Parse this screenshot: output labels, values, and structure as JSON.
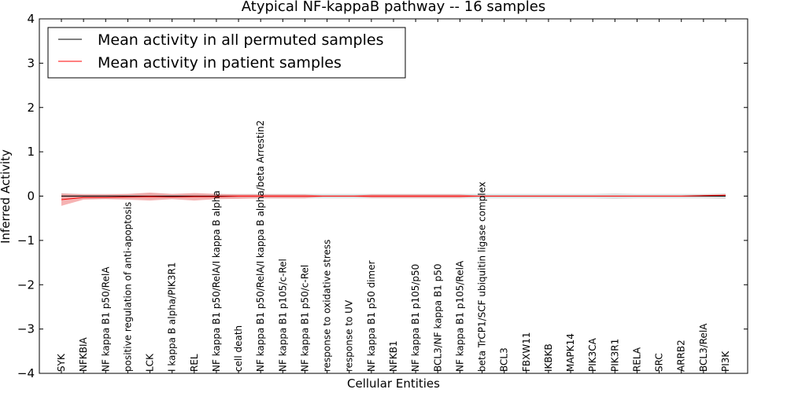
{
  "chart_data": {
    "type": "line",
    "title": "Atypical NF-kappaB pathway -- 16 samples",
    "xlabel": "Cellular Entities",
    "ylabel": "Inferred Activity",
    "ylim": [
      -4,
      4
    ],
    "yticks": [
      -4,
      -3,
      -2,
      -1,
      0,
      1,
      2,
      3,
      4
    ],
    "ytick_labels": [
      "−4",
      "−3",
      "−2",
      "−1",
      "0",
      "1",
      "2",
      "3",
      "4"
    ],
    "grid": false,
    "legend_position": "top-left",
    "categories": [
      "SYK",
      "NFKBIA",
      "NF kappa B1 p50/RelA",
      "positive regulation of anti-apoptosis",
      "LCK",
      "I kappa B alpha/PIK3R1",
      "REL",
      "NF kappa B1 p50/RelA/I kappa B alpha",
      "cell death",
      "NF kappa B1 p50/RelA/I kappa B alpha/beta Arrestin2",
      "NF kappa B1 p105/c-Rel",
      "NF kappa B1 p50/c-Rel",
      "response to oxidative stress",
      "response to UV",
      "NF kappa B1 p50 dimer",
      "NFKB1",
      "NF kappa B1 p105/p50",
      "BCL3/NF kappa B1 p50",
      "NF kappa B1 p105/RelA",
      "beta TrCP1/SCF ubiquitin ligase complex",
      "BCL3",
      "FBXW11",
      "IKBKB",
      "MAPK14",
      "PIK3CA",
      "PIK3R1",
      "RELA",
      "SRC",
      "ARRB2",
      "BCL3/RelA",
      "PI3K"
    ],
    "series": [
      {
        "name": "Mean activity in all permuted samples",
        "color": "#000000",
        "band_color": "#b0b0b0",
        "values": [
          0.0,
          0.0,
          0.0,
          0.0,
          0.0,
          0.0,
          0.0,
          0.0,
          0.0,
          0.0,
          0.0,
          0.0,
          0.0,
          0.0,
          0.0,
          0.0,
          0.0,
          0.0,
          0.0,
          0.0,
          0.0,
          0.0,
          0.0,
          0.0,
          0.0,
          0.0,
          0.0,
          0.0,
          0.0,
          0.0,
          0.0
        ],
        "band_low": [
          -0.06,
          -0.05,
          -0.05,
          -0.05,
          -0.06,
          -0.05,
          -0.05,
          -0.05,
          -0.05,
          -0.05,
          -0.05,
          -0.05,
          -0.05,
          -0.05,
          -0.05,
          -0.05,
          -0.05,
          -0.05,
          -0.05,
          -0.05,
          -0.05,
          -0.05,
          -0.05,
          -0.05,
          -0.05,
          -0.06,
          -0.05,
          -0.05,
          -0.05,
          -0.05,
          -0.06
        ],
        "band_high": [
          0.06,
          0.05,
          0.05,
          0.05,
          0.06,
          0.05,
          0.05,
          0.05,
          0.05,
          0.05,
          0.05,
          0.05,
          0.05,
          0.05,
          0.05,
          0.05,
          0.05,
          0.05,
          0.05,
          0.05,
          0.05,
          0.05,
          0.05,
          0.05,
          0.05,
          0.06,
          0.05,
          0.05,
          0.05,
          0.05,
          0.06
        ]
      },
      {
        "name": "Mean activity in patient samples",
        "color": "#ff0000",
        "band_color": "#f08080",
        "values": [
          -0.08,
          -0.03,
          -0.03,
          -0.02,
          -0.01,
          -0.02,
          -0.01,
          -0.01,
          0.0,
          0.0,
          0.0,
          0.0,
          0.0,
          0.0,
          0.0,
          0.0,
          0.0,
          0.0,
          0.0,
          0.0,
          0.0,
          0.0,
          0.0,
          0.0,
          0.0,
          0.0,
          0.0,
          0.0,
          0.0,
          0.01,
          0.02
        ],
        "band_low": [
          -0.22,
          -0.08,
          -0.07,
          -0.08,
          -0.1,
          -0.07,
          -0.1,
          -0.07,
          -0.06,
          -0.05,
          -0.05,
          -0.05,
          0.0,
          0.0,
          -0.04,
          -0.04,
          -0.04,
          -0.04,
          -0.04,
          0.0,
          0.0,
          0.0,
          0.0,
          0.0,
          0.0,
          0.0,
          0.0,
          0.0,
          0.0,
          0.0,
          0.0
        ],
        "band_high": [
          0.06,
          0.04,
          0.04,
          0.05,
          0.08,
          0.05,
          0.07,
          0.05,
          0.04,
          0.04,
          0.04,
          0.04,
          0.0,
          0.0,
          0.04,
          0.04,
          0.04,
          0.04,
          0.04,
          0.0,
          0.0,
          0.0,
          0.0,
          0.0,
          0.0,
          0.0,
          0.0,
          0.0,
          0.0,
          0.02,
          0.04
        ]
      }
    ]
  }
}
